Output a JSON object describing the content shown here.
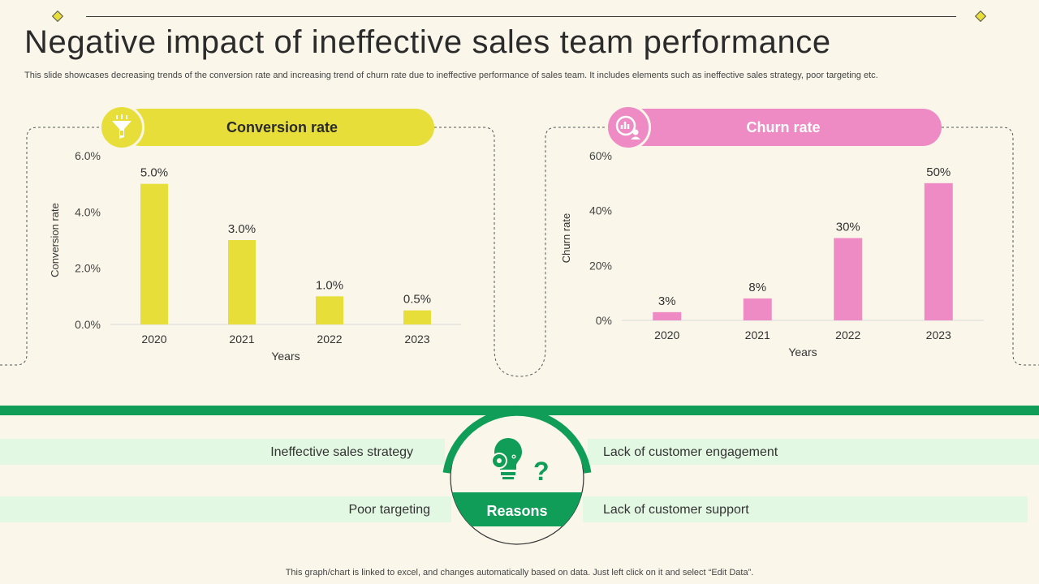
{
  "title": "Negative impact of ineffective sales team performance",
  "subtitle": "This slide showcases decreasing trends of the conversion rate and increasing trend of churn rate due to ineffective  performance of sales team. It includes elements such as ineffective sales strategy, poor targeting etc.",
  "colors": {
    "yellow": "#e8de3a",
    "pink": "#ee8bc4",
    "green": "#0f9d58",
    "light_green": "#e3f8e3",
    "background": "#faf7ea"
  },
  "chart_data": [
    {
      "type": "bar",
      "title": "Conversion rate",
      "categories": [
        "2020",
        "2021",
        "2022",
        "2023"
      ],
      "values": [
        5.0,
        3.0,
        1.0,
        0.5
      ],
      "value_labels": [
        "5.0%",
        "3.0%",
        "1.0%",
        "0.5%"
      ],
      "xlabel": "Years",
      "ylabel": "Conversion rate",
      "ylim": [
        0,
        6
      ],
      "yticks": [
        "0.0%",
        "2.0%",
        "4.0%",
        "6.0%"
      ],
      "color": "#e8de3a",
      "icon": "funnel-icon"
    },
    {
      "type": "bar",
      "title": "Churn rate",
      "categories": [
        "2020",
        "2021",
        "2022",
        "2023"
      ],
      "values": [
        3,
        8,
        30,
        50
      ],
      "value_labels": [
        "3%",
        "8%",
        "30%",
        "50%"
      ],
      "xlabel": "Years",
      "ylabel": "Churn rate",
      "ylim": [
        0,
        60
      ],
      "yticks": [
        "0%",
        "20%",
        "40%",
        "60%"
      ],
      "color": "#ee8bc4",
      "icon": "user-analytics-icon"
    }
  ],
  "reasons": {
    "label": "Reasons",
    "icon": "lightbulb-gear-question-icon",
    "left": [
      "Ineffective  sales strategy",
      "Poor targeting"
    ],
    "right": [
      "Lack of customer  engagement",
      "Lack of customer  support"
    ]
  },
  "footnote": "This graph/chart is linked to excel,  and changes automatically based on data. Just left click on it and select “Edit Data”."
}
